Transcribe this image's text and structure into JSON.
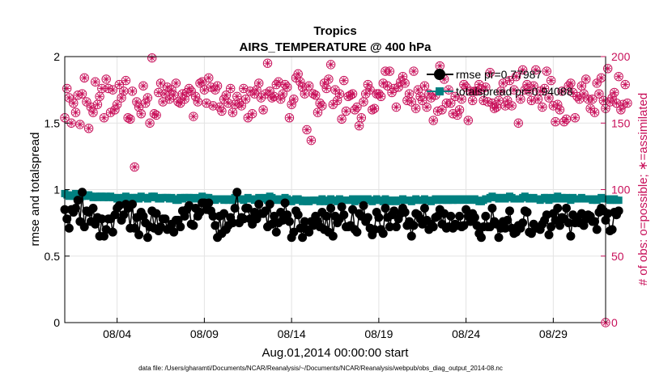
{
  "chart_data": {
    "type": "line",
    "title": "Tropics",
    "subtitle": "AIRS_TEMPERATURE @ 400 hPa",
    "xlabel": "Aug.01,2014 00:00:00 start",
    "ylabel_left": "rmse and totalspread",
    "ylabel_right": "# of obs: o=possible; ∗=assimilated",
    "footnote": "data file: /Users/gharamti/Documents/NCAR/Reanalysis/~/Documents/NCAR/Reanalysis/webpub/obs_diag_output_2014-08.nc",
    "ylim_left": [
      0,
      2
    ],
    "ylim_right": [
      0,
      200
    ],
    "xlim": [
      0,
      124
    ],
    "grid": true,
    "yticks_left": [
      0,
      0.5,
      1,
      1.5,
      2
    ],
    "ytick_labels_left": [
      "0",
      "0.5",
      "1",
      "1.5",
      "2"
    ],
    "yticks_right": [
      0,
      50,
      100,
      150,
      200
    ],
    "ytick_labels_right": [
      "0",
      "50",
      "100",
      "150",
      "200"
    ],
    "xticks": [
      12,
      32,
      52,
      72,
      92,
      112
    ],
    "xtick_labels": [
      "08/04",
      "08/09",
      "08/14",
      "08/19",
      "08/24",
      "08/29"
    ],
    "legend_position": "top-right",
    "colors": {
      "rmse": "#000000",
      "totalspread": "#008080",
      "obs": "#c8105a"
    },
    "series": [
      {
        "name": "rmse",
        "legend": "rmse pr=0.77987",
        "axis": "left",
        "values": [
          0.85,
          0.78,
          0.71,
          0.85,
          0.83,
          0.86,
          0.92,
          0.76,
          0.98,
          0.72,
          0.84,
          0.83,
          0.76,
          0.86,
          0.74,
          0.79,
          0.65,
          0.78,
          0.65,
          0.7,
          0.78,
          0.78,
          0.68,
          0.81,
          0.86,
          0.88,
          0.77,
          0.81,
          0.89,
          0.86,
          0.71,
          0.89,
          0.71,
          0.79,
          0.66,
          0.83,
          0.8,
          0.75,
          0.64,
          0.72,
          0.84,
          0.71,
          0.82,
          0.69,
          0.72,
          0.78,
          0.78,
          0.7,
          0.71,
          0.74,
          0.68,
          0.77,
          0.77,
          0.72,
          0.84,
          0.8,
          0.85,
          0.88,
          0.74,
          0.73,
          0.86,
          0.8,
          0.83,
          0.9,
          0.9,
          0.85,
          0.9,
          0.84,
          0.8,
          0.73,
          0.64,
          0.8,
          0.67,
          0.82,
          0.7,
          0.73,
          0.79,
          0.75,
          0.86,
          0.98,
          0.75,
          0.79,
          0.78,
          0.86,
          0.86,
          0.78,
          0.74,
          0.83,
          0.78,
          0.89,
          0.82,
          0.82,
          0.84,
          0.72,
          0.89,
          0.74,
          0.8,
          0.68,
          0.75,
          0.83,
          0.77,
          0.9,
          0.81,
          0.76,
          0.64,
          0.68,
          0.84,
          0.81,
          0.71,
          0.64,
          0.76,
          0.7,
          0.68,
          0.76,
          0.73,
          0.8,
          0.76,
          0.72,
          0.83,
          0.7,
          0.8,
          0.68,
          0.86,
          0.65,
          0.8,
          0.75,
          0.78,
          0.87,
          0.81,
          0.72,
          0.72,
          0.73,
          0.85,
          0.7,
          0.68,
          0.82,
          0.8,
          0.88,
          0.76,
          0.79,
          0.71,
          0.66,
          0.7,
          0.83,
          0.79,
          0.7,
          0.67,
          0.86,
          0.79,
          0.72,
          0.81,
          0.84,
          0.72,
          0.78,
          0.82,
          0.86,
          0.83,
          0.73,
          0.76,
          0.65,
          0.73,
          0.82,
          0.81,
          0.78,
          0.74,
          0.86,
          0.77,
          0.7,
          0.74,
          0.72,
          0.79,
          0.8,
          0.85,
          0.74,
          0.82,
          0.71,
          0.72,
          0.8,
          0.71,
          0.74,
          0.73,
          0.8,
          0.72,
          0.73,
          0.85,
          0.8,
          0.76,
          0.82,
          0.79,
          0.73,
          0.67,
          0.64,
          0.72,
          0.8,
          0.72,
          0.72,
          0.86,
          0.76,
          0.74,
          0.64,
          0.71,
          0.76,
          0.71,
          0.77,
          0.84,
          0.71,
          0.67,
          0.68,
          0.73,
          0.71,
          0.75,
          0.84,
          0.83,
          0.68,
          0.67,
          0.74,
          0.71,
          0.71,
          0.7,
          0.74,
          0.77,
          0.81,
          0.66,
          0.72,
          0.82,
          0.77,
          0.86,
          0.73,
          0.79,
          0.78,
          0.86,
          0.75,
          0.65,
          0.81,
          0.75,
          0.79,
          0.75,
          0.82,
          0.73,
          0.78,
          0.81,
          0.8,
          0.76,
          0.76,
          0.7,
          0.83,
          0.86,
          0.84,
          0.77,
          0.82,
          0.69,
          0.7,
          0.83,
          0.81,
          0.84
        ]
      },
      {
        "name": "totalspread",
        "legend": "totalspread pr=0.94088",
        "axis": "left",
        "values": [
          0.97,
          0.96,
          0.95,
          0.96,
          0.95,
          0.97,
          0.96,
          0.94,
          0.95,
          0.95,
          0.96,
          0.96,
          0.95,
          0.94,
          0.95,
          0.94,
          0.95,
          0.95,
          0.94,
          0.95,
          0.94,
          0.95,
          0.94,
          0.94,
          0.93,
          0.93,
          0.94,
          0.94,
          0.95,
          0.94,
          0.93,
          0.94,
          0.94,
          0.94,
          0.93,
          0.95,
          0.94,
          0.94,
          0.93,
          0.94,
          0.95,
          0.95,
          0.94,
          0.93,
          0.93,
          0.94,
          0.94,
          0.94,
          0.93,
          0.94,
          0.93,
          0.92,
          0.92,
          0.94,
          0.93,
          0.94,
          0.94,
          0.94,
          0.93,
          0.94,
          0.93,
          0.93,
          0.94,
          0.95,
          0.94,
          0.94,
          0.94,
          0.93,
          0.93,
          0.92,
          0.93,
          0.93,
          0.93,
          0.92,
          0.93,
          0.92,
          0.93,
          0.92,
          0.94,
          0.95,
          0.93,
          0.93,
          0.92,
          0.93,
          0.94,
          0.93,
          0.93,
          0.92,
          0.93,
          0.94,
          0.93,
          0.93,
          0.94,
          0.92,
          0.95,
          0.94,
          0.93,
          0.92,
          0.92,
          0.93,
          0.92,
          0.94,
          0.93,
          0.92,
          0.91,
          0.92,
          0.93,
          0.93,
          0.92,
          0.91,
          0.92,
          0.91,
          0.91,
          0.92,
          0.92,
          0.92,
          0.92,
          0.91,
          0.93,
          0.91,
          0.92,
          0.91,
          0.93,
          0.92,
          0.92,
          0.91,
          0.93,
          0.92,
          0.92,
          0.92,
          0.92,
          0.92,
          0.93,
          0.91,
          0.92,
          0.93,
          0.92,
          0.93,
          0.93,
          0.93,
          0.92,
          0.91,
          0.92,
          0.93,
          0.92,
          0.92,
          0.91,
          0.93,
          0.92,
          0.91,
          0.92,
          0.92,
          0.91,
          0.92,
          0.92,
          0.93,
          0.92,
          0.92,
          0.92,
          0.91,
          0.92,
          0.93,
          0.92,
          0.92,
          0.92,
          0.93,
          0.92,
          0.92,
          0.91,
          0.92,
          0.93,
          0.92,
          0.93,
          0.92,
          0.93,
          0.92,
          0.92,
          0.93,
          0.92,
          0.93,
          0.92,
          0.93,
          0.93,
          0.92,
          0.93,
          0.93,
          0.92,
          0.93,
          0.93,
          0.92,
          0.91,
          0.91,
          0.92,
          0.93,
          0.93,
          0.94,
          0.95,
          0.94,
          0.94,
          0.93,
          0.94,
          0.94,
          0.93,
          0.94,
          0.95,
          0.94,
          0.93,
          0.93,
          0.93,
          0.93,
          0.94,
          0.95,
          0.94,
          0.93,
          0.93,
          0.94,
          0.93,
          0.93,
          0.92,
          0.93,
          0.94,
          0.94,
          0.92,
          0.93,
          0.94,
          0.93,
          0.95,
          0.93,
          0.94,
          0.93,
          0.94,
          0.93,
          0.92,
          0.94,
          0.93,
          0.93,
          0.93,
          0.94,
          0.93,
          0.93,
          0.93,
          0.93,
          0.92,
          0.93,
          0.92,
          0.93,
          0.94,
          0.93,
          0.93,
          0.93,
          0.92,
          0.92,
          0.93,
          0.92,
          0.92
        ]
      },
      {
        "name": "obs",
        "legend": "",
        "axis": "right",
        "values": [
          154,
          176,
          169,
          150,
          165,
          158,
          171,
          149,
          172,
          184,
          166,
          146,
          162,
          158,
          181,
          164,
          170,
          176,
          154,
          183,
          176,
          158,
          175,
          160,
          164,
          179,
          169,
          174,
          182,
          154,
          153,
          174,
          117,
          166,
          162,
          157,
          178,
          165,
          169,
          150,
          199,
          157,
          156,
          173,
          180,
          166,
          172,
          177,
          168,
          175,
          171,
          180,
          166,
          165,
          172,
          168,
          173,
          176,
          174,
          155,
          170,
          166,
          180,
          181,
          175,
          165,
          184,
          177,
          163,
          175,
          178,
          162,
          159,
          168,
          171,
          165,
          176,
          158,
          164,
          170,
          165,
          163,
          176,
          168,
          154,
          174,
          157,
          172,
          175,
          180,
          169,
          160,
          172,
          195,
          174,
          169,
          170,
          179,
          181,
          168,
          172,
          179,
          177,
          154,
          164,
          168,
          184,
          187,
          181,
          177,
          172,
          145,
          178,
          137,
          172,
          171,
          158,
          165,
          163,
          180,
          176,
          183,
          194,
          164,
          175,
          167,
          172,
          153,
          182,
          159,
          170,
          171,
          172,
          160,
          162,
          148,
          154,
          166,
          172,
          179,
          175,
          160,
          161,
          172,
          172,
          170,
          180,
          189,
          178,
          189,
          173,
          176,
          162,
          177,
          181,
          185,
          180,
          167,
          172,
          166,
          189,
          161,
          175,
          170,
          167,
          178,
          162,
          172,
          169,
          152,
          171,
          159,
          193,
          160,
          183,
          165,
          175,
          165,
          157,
          170,
          156,
          160,
          168,
          179,
          177,
          152,
          174,
          167,
          174,
          174,
          179,
          175,
          167,
          177,
          166,
          188,
          165,
          161,
          162,
          167,
          174,
          180,
          163,
          167,
          182,
          163,
          175,
          185,
          150,
          168,
          190,
          175,
          179,
          174,
          167,
          178,
          190,
          168,
          174,
          162,
          176,
          189,
          169,
          182,
          163,
          151,
          164,
          160,
          174,
          151,
          153,
          178,
          180,
          173,
          154,
          170,
          168,
          178,
          172,
          183,
          168,
          161,
          168,
          158,
          180,
          172,
          184,
          167,
          161,
          191,
          166,
          169,
          173,
          165,
          185,
          160,
          164,
          179,
          165
        ]
      },
      {
        "name": "obs-outliers",
        "legend": "",
        "axis": "right",
        "points": [
          [
            93.5,
            80
          ],
          [
            124,
            0
          ]
        ]
      }
    ]
  }
}
